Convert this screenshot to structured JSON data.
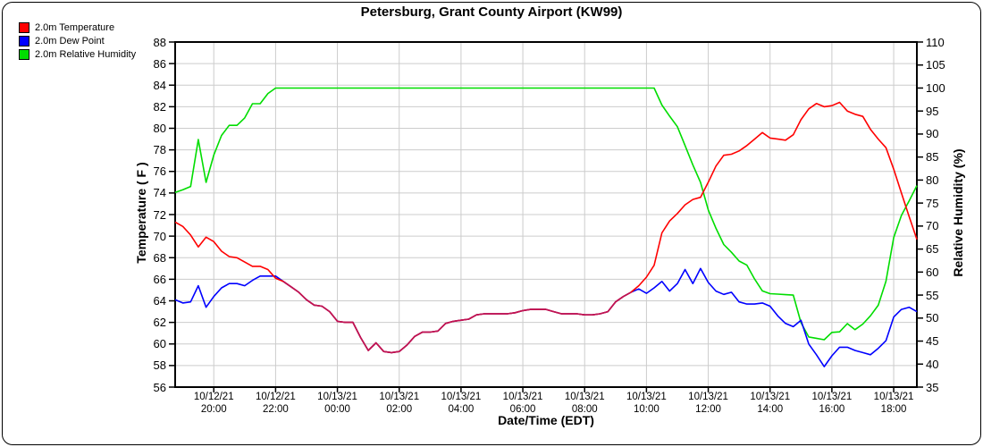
{
  "title": "Petersburg, Grant County Airport (KW99)",
  "legend": {
    "items": [
      {
        "label": "2.0m Temperature",
        "color": "#ff0000"
      },
      {
        "label": "2.0m Dew Point",
        "color": "#0000ff"
      },
      {
        "label": "2.0m Relative Humidity",
        "color": "#00dd00"
      }
    ]
  },
  "axes": {
    "y_left": {
      "label": "Temperature ( F )",
      "min": 56,
      "max": 88,
      "step": 2,
      "ticks": [
        56,
        58,
        60,
        62,
        64,
        66,
        68,
        70,
        72,
        74,
        76,
        78,
        80,
        82,
        84,
        86,
        88
      ]
    },
    "y_right": {
      "label": "Relative Humidity (%)",
      "min": 35,
      "max": 110,
      "step": 5,
      "ticks": [
        35,
        40,
        45,
        50,
        55,
        60,
        65,
        70,
        75,
        80,
        85,
        90,
        95,
        100,
        105,
        110
      ]
    },
    "x": {
      "label": "Date/Time (EDT)",
      "ticks": [
        {
          "date": "10/12/21",
          "time": "20:00"
        },
        {
          "date": "10/12/21",
          "time": "22:00"
        },
        {
          "date": "10/13/21",
          "time": "00:00"
        },
        {
          "date": "10/13/21",
          "time": "02:00"
        },
        {
          "date": "10/13/21",
          "time": "04:00"
        },
        {
          "date": "10/13/21",
          "time": "06:00"
        },
        {
          "date": "10/13/21",
          "time": "08:00"
        },
        {
          "date": "10/13/21",
          "time": "10:00"
        },
        {
          "date": "10/13/21",
          "time": "12:00"
        },
        {
          "date": "10/13/21",
          "time": "14:00"
        },
        {
          "date": "10/13/21",
          "time": "16:00"
        },
        {
          "date": "10/13/21",
          "time": "18:00"
        }
      ]
    }
  },
  "chart_data": {
    "type": "line",
    "x_start": "10/12/21 18:45 EDT",
    "x_end": "10/13/21 18:45 EDT",
    "interval_minutes": 15,
    "x_total_minutes": 1440,
    "tick_minutes": [
      75,
      195,
      315,
      435,
      555,
      675,
      795,
      915,
      1035,
      1155,
      1275,
      1395
    ],
    "grid": true,
    "legend_position": "top-left",
    "overlap_color": "#c01452",
    "grid_color": "#cccccc",
    "series": [
      {
        "name": "2.0m Temperature",
        "axis": "left",
        "color": "#ff0000",
        "values": [
          71.3,
          70.9,
          70.1,
          69.0,
          69.9,
          69.5,
          68.6,
          68.1,
          68.0,
          67.6,
          67.2,
          67.2,
          66.9,
          66.1,
          65.8,
          65.3,
          64.8,
          64.1,
          63.6,
          63.5,
          63.0,
          62.1,
          62.0,
          62.0,
          60.6,
          59.4,
          60.1,
          59.3,
          59.2,
          59.3,
          59.9,
          60.7,
          61.1,
          61.1,
          61.2,
          61.9,
          62.1,
          62.2,
          62.3,
          62.7,
          62.8,
          62.8,
          62.8,
          62.8,
          62.9,
          63.1,
          63.2,
          63.2,
          63.2,
          63.0,
          62.8,
          62.8,
          62.8,
          62.7,
          62.7,
          62.8,
          63.0,
          63.9,
          64.4,
          64.8,
          65.4,
          66.2,
          67.3,
          70.3,
          71.4,
          72.1,
          72.9,
          73.4,
          73.6,
          75.0,
          76.5,
          77.5,
          77.6,
          77.9,
          78.4,
          79.0,
          79.6,
          79.1,
          79.0,
          78.9,
          79.4,
          80.8,
          81.8,
          82.3,
          82.0,
          82.1,
          82.4,
          81.6,
          81.3,
          81.1,
          79.9,
          79.0,
          78.2,
          76.2,
          74.0,
          71.8,
          69.7
        ]
      },
      {
        "name": "2.0m Dew Point",
        "axis": "left",
        "color": "#0000ff",
        "values": [
          64.1,
          63.8,
          63.9,
          65.4,
          63.4,
          64.4,
          65.2,
          65.6,
          65.6,
          65.4,
          65.9,
          66.3,
          66.3,
          66.3,
          65.8,
          65.3,
          64.8,
          64.1,
          63.6,
          63.5,
          63.0,
          62.1,
          62.0,
          62.0,
          60.6,
          59.4,
          60.1,
          59.3,
          59.2,
          59.3,
          59.9,
          60.7,
          61.1,
          61.1,
          61.2,
          61.9,
          62.1,
          62.2,
          62.3,
          62.7,
          62.8,
          62.8,
          62.8,
          62.8,
          62.9,
          63.1,
          63.2,
          63.2,
          63.2,
          63.0,
          62.8,
          62.8,
          62.8,
          62.7,
          62.7,
          62.8,
          63.0,
          63.9,
          64.4,
          64.8,
          65.1,
          64.7,
          65.2,
          65.8,
          64.9,
          65.6,
          66.9,
          65.6,
          67.0,
          65.7,
          64.9,
          64.6,
          64.8,
          63.9,
          63.7,
          63.7,
          63.8,
          63.5,
          62.6,
          61.9,
          61.6,
          62.2,
          60.0,
          59.0,
          57.9,
          58.9,
          59.7,
          59.7,
          59.4,
          59.2,
          59.0,
          59.6,
          60.3,
          62.5,
          63.2,
          63.4,
          63.0
        ]
      },
      {
        "name": "2.0m Relative Humidity",
        "axis": "right",
        "color": "#00dd00",
        "values": [
          77.3,
          77.9,
          78.6,
          88.8,
          79.5,
          85.4,
          89.7,
          91.9,
          91.9,
          93.5,
          96.6,
          96.6,
          98.8,
          100,
          100,
          100,
          100,
          100,
          100,
          100,
          100,
          100,
          100,
          100,
          100,
          100,
          100,
          100,
          100,
          100,
          100,
          100,
          100,
          100,
          100,
          100,
          100,
          100,
          100,
          100,
          100,
          100,
          100,
          100,
          100,
          100,
          100,
          100,
          100,
          100,
          100,
          100,
          100,
          100,
          100,
          100,
          100,
          100,
          100,
          100,
          100,
          100,
          100,
          96.3,
          93.9,
          91.6,
          87.5,
          83.3,
          79.5,
          73.5,
          69.5,
          66.0,
          64.3,
          62.4,
          61.5,
          58.5,
          55.9,
          55.3,
          55.2,
          55.1,
          55.0,
          49.0,
          45.9,
          45.6,
          45.3,
          46.9,
          47.0,
          48.8,
          47.5,
          48.7,
          50.5,
          52.8,
          58.0,
          67.5,
          72.3,
          75.5,
          78.8
        ]
      }
    ]
  }
}
